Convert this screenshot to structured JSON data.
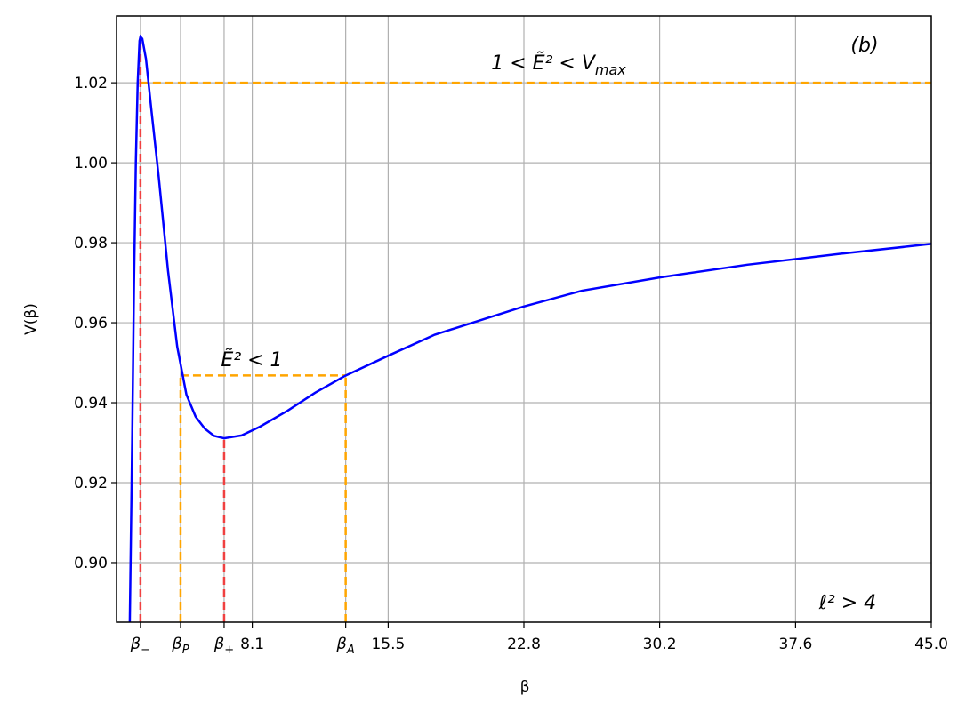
{
  "chart_data": {
    "type": "line",
    "xlabel": "β",
    "ylabel": "V(β)",
    "x": [
      1.42,
      1.55,
      1.65,
      1.75,
      1.85,
      1.95,
      2.0,
      2.1,
      2.3,
      2.6,
      3.0,
      3.5,
      4.0,
      4.5,
      5.0,
      5.5,
      6.0,
      6.55,
      7.5,
      8.5,
      10,
      11.5,
      13.16,
      15.5,
      18,
      22.8,
      26,
      30.2,
      35,
      40,
      45
    ],
    "series": [
      {
        "color": "#0000ff",
        "values": [
          0.885,
          0.93,
          0.97,
          1.0,
          1.02,
          1.0305,
          1.0315,
          1.031,
          1.026,
          1.013,
          0.9962,
          0.973,
          0.954,
          0.942,
          0.9365,
          0.9335,
          0.9317,
          0.9311,
          0.9318,
          0.934,
          0.938,
          0.9425,
          0.9468,
          0.9518,
          0.957,
          0.964,
          0.968,
          0.9713,
          0.9745,
          0.9772,
          0.9797
        ]
      }
    ],
    "xlim": [
      0.7,
      45
    ],
    "ylim": [
      0.8851,
      1.0367
    ],
    "xticks": [
      {
        "value": 2.0,
        "label": "β",
        "sub": "−"
      },
      {
        "value": 4.18,
        "label": "β",
        "sub": "P"
      },
      {
        "value": 6.55,
        "label": "β",
        "sub": "+"
      },
      {
        "value": 8.08,
        "label": "8.1"
      },
      {
        "value": 13.16,
        "label": "β",
        "sub": "A"
      },
      {
        "value": 15.47,
        "label": "15.5"
      },
      {
        "value": 22.85,
        "label": "22.8"
      },
      {
        "value": 30.23,
        "label": "30.2"
      },
      {
        "value": 37.62,
        "label": "37.6"
      },
      {
        "value": 45,
        "label": "45.0"
      }
    ],
    "yticks": [
      {
        "value": 0.9,
        "label": "0.90"
      },
      0.92,
      0.94,
      0.96,
      0.98,
      {
        "value": 1.0,
        "label": "1.00"
      },
      1.02
    ],
    "grid": true,
    "hlines": [
      {
        "y": 1.02,
        "x": [
          2.0,
          45
        ],
        "color": "#ffa500"
      },
      {
        "y": 0.9468,
        "x": [
          4.18,
          13.16
        ],
        "color": "#ffa500"
      }
    ],
    "vlines": [
      {
        "x": 2.0,
        "y": 1.0315,
        "color": "#f04040"
      },
      {
        "x": 4.18,
        "y": 0.9468,
        "color": "#ffa500"
      },
      {
        "x": 6.55,
        "y": 0.9311,
        "color": "#f04040"
      },
      {
        "x": 13.16,
        "y": 0.9468,
        "color": "#ffa500"
      }
    ],
    "annotations": [
      {
        "text": "1 < Ẽ² < V",
        "sub": "max"
      },
      {
        "text": "Ẽ² < 1"
      },
      {
        "text": "(b)"
      },
      {
        "text": "ℓ² > 4"
      }
    ]
  }
}
